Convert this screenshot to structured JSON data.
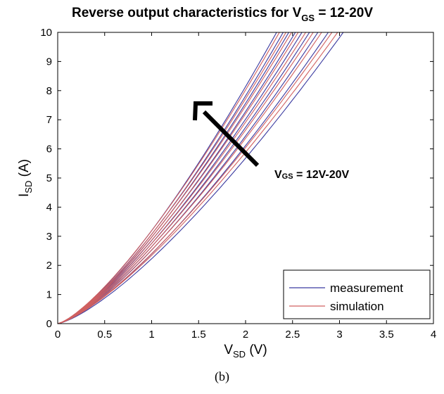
{
  "chart_data": {
    "type": "line",
    "title": {
      "main": "Reverse output characteristics for V",
      "sub": "GS",
      "rest": " = 12-20V"
    },
    "xlabel": {
      "main": "V",
      "sub": "SD",
      "rest": " (V)"
    },
    "ylabel": {
      "main": "I",
      "sub": "SD",
      "rest": " (A)"
    },
    "xlim": [
      0,
      4
    ],
    "ylim": [
      0,
      10
    ],
    "xticks": [
      "0",
      "0.5",
      "1",
      "1.5",
      "2",
      "2.5",
      "3",
      "3.5",
      "4"
    ],
    "yticks": [
      "0",
      "1",
      "2",
      "3",
      "4",
      "5",
      "6",
      "7",
      "8",
      "9",
      "10"
    ],
    "grid": false,
    "annotation": {
      "text_main": "V",
      "text_sub": "GS",
      "text_rest": " = 12V-20V"
    },
    "legend": {
      "position": "bottom-right",
      "entries": [
        "measurement",
        "simulation"
      ]
    },
    "series": [
      {
        "name": "measurement",
        "color": "#3a3aa0",
        "curves_end_x": [
          2.33,
          2.4,
          2.46,
          2.53,
          2.6,
          2.68,
          2.77,
          2.88,
          3.04
        ],
        "exponent": 1.35
      },
      {
        "name": "simulation",
        "color": "#d06060",
        "curves_end_x": [
          2.36,
          2.43,
          2.49,
          2.56,
          2.64,
          2.72,
          2.81,
          2.92,
          2.98
        ],
        "exponent": 1.33
      }
    ]
  },
  "caption": "(b)"
}
